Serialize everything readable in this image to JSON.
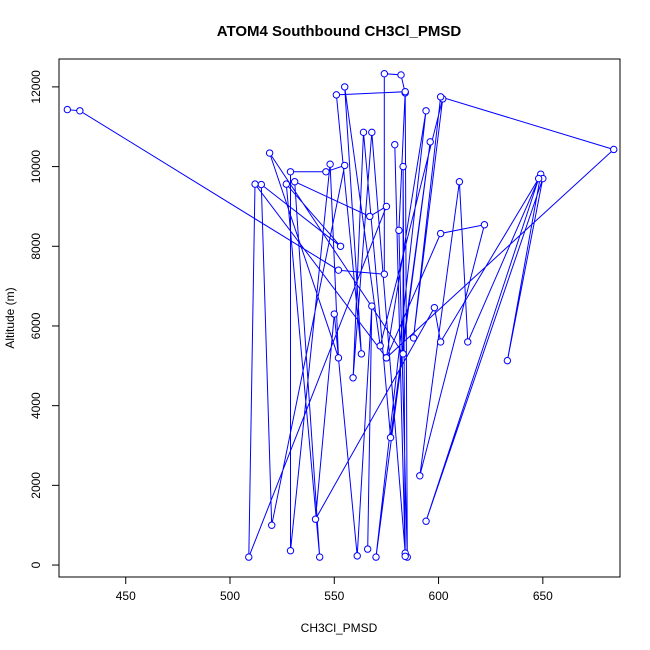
{
  "chart_data": {
    "type": "line",
    "title": "ATOM4 Southbound CH3Cl_PMSD",
    "xlabel": "CH3Cl_PMSD",
    "ylabel": "Altitude (m)",
    "xlim": [
      418,
      687
    ],
    "ylim": [
      -300,
      12700
    ],
    "xticks": [
      450,
      500,
      550,
      600,
      650
    ],
    "yticks": [
      0,
      2000,
      4000,
      6000,
      8000,
      10000,
      12000
    ],
    "grid": false,
    "legend": "none",
    "series": [
      {
        "color": "#0000ff",
        "marker": "open-circle",
        "points": [
          [
            422,
            11430
          ],
          [
            428,
            11400
          ],
          [
            552,
            7400
          ],
          [
            574,
            7300
          ],
          [
            574,
            12330
          ],
          [
            582,
            12300
          ],
          [
            584,
            11850
          ],
          [
            585,
            200
          ],
          [
            581,
            8400
          ],
          [
            584,
            11880
          ],
          [
            551,
            11800
          ],
          [
            563,
            5300
          ],
          [
            555,
            12000
          ],
          [
            572,
            5500
          ],
          [
            602,
            11700
          ],
          [
            588,
            5700
          ],
          [
            601,
            11750
          ],
          [
            684,
            10430
          ],
          [
            575,
            5200
          ],
          [
            594,
            11400
          ],
          [
            570,
            200
          ],
          [
            596,
            10620
          ],
          [
            577,
            3200
          ],
          [
            564,
            10860
          ],
          [
            559,
            4700
          ],
          [
            568,
            10860
          ],
          [
            584,
            300
          ],
          [
            579,
            10550
          ],
          [
            584,
            220
          ],
          [
            583,
            10000
          ],
          [
            583,
            5300
          ],
          [
            519,
            10340
          ],
          [
            552,
            5200
          ],
          [
            548,
            10060
          ],
          [
            529,
            360
          ],
          [
            529,
            9870
          ],
          [
            546,
            9870
          ],
          [
            555,
            10030
          ],
          [
            520,
            1000
          ],
          [
            515,
            9550
          ],
          [
            553,
            8000
          ],
          [
            527,
            9560
          ],
          [
            543,
            200
          ],
          [
            531,
            9620
          ],
          [
            567,
            8750
          ],
          [
            575,
            9000
          ],
          [
            509,
            200
          ],
          [
            512,
            9560
          ],
          [
            575,
            5200
          ],
          [
            601,
            8320
          ],
          [
            622,
            8540
          ],
          [
            591,
            2240
          ],
          [
            610,
            9620
          ],
          [
            614,
            5600
          ],
          [
            649,
            9810
          ],
          [
            633,
            5130
          ],
          [
            650,
            9700
          ],
          [
            594,
            1100
          ],
          [
            648,
            9700
          ],
          [
            601,
            5600
          ],
          [
            598,
            6460
          ],
          [
            541,
            1150
          ],
          [
            550,
            6300
          ],
          [
            561,
            230
          ],
          [
            568,
            6500
          ],
          [
            566,
            400
          ]
        ]
      }
    ]
  }
}
